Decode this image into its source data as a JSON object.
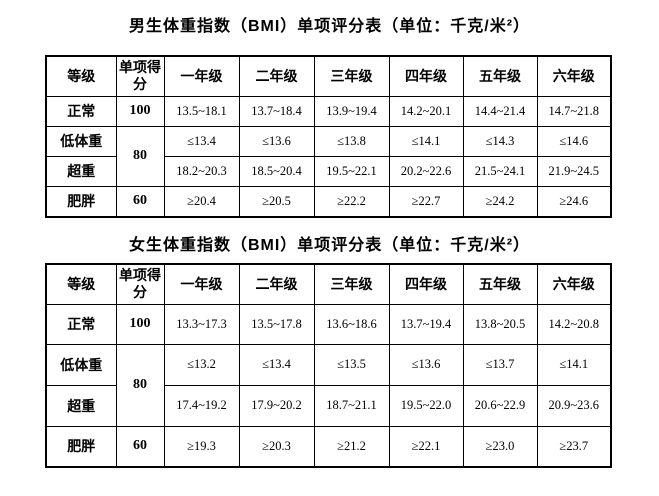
{
  "colors": {
    "background": "#ffffff",
    "border": "#000000",
    "text": "#000000"
  },
  "tables": [
    {
      "title": "男生体重指数（BMI）单项评分表（单位：千克/米²）",
      "headers": [
        "等级",
        "单项得分",
        "一年级",
        "二年级",
        "三年级",
        "四年级",
        "五年级",
        "六年级"
      ],
      "rows": [
        {
          "grade": "正常",
          "score": "100",
          "score_rowspan": 1,
          "values": [
            "13.5~18.1",
            "13.7~18.4",
            "13.9~19.4",
            "14.2~20.1",
            "14.4~21.4",
            "14.7~21.8"
          ]
        },
        {
          "grade": "低体重",
          "score": "80",
          "score_rowspan": 2,
          "values": [
            "≤13.4",
            "≤13.6",
            "≤13.8",
            "≤14.1",
            "≤14.3",
            "≤14.6"
          ]
        },
        {
          "grade": "超重",
          "score": null,
          "score_rowspan": 0,
          "values": [
            "18.2~20.3",
            "18.5~20.4",
            "19.5~22.1",
            "20.2~22.6",
            "21.5~24.1",
            "21.9~24.5"
          ]
        },
        {
          "grade": "肥胖",
          "score": "60",
          "score_rowspan": 1,
          "values": [
            "≥20.4",
            "≥20.5",
            "≥22.2",
            "≥22.7",
            "≥24.2",
            "≥24.6"
          ]
        }
      ]
    },
    {
      "title": "女生体重指数（BMI）单项评分表（单位：千克/米²）",
      "headers": [
        "等级",
        "单项得分",
        "一年级",
        "二年级",
        "三年级",
        "四年级",
        "五年级",
        "六年级"
      ],
      "rows": [
        {
          "grade": "正常",
          "score": "100",
          "score_rowspan": 1,
          "values": [
            "13.3~17.3",
            "13.5~17.8",
            "13.6~18.6",
            "13.7~19.4",
            "13.8~20.5",
            "14.2~20.8"
          ]
        },
        {
          "grade": "低体重",
          "score": "80",
          "score_rowspan": 2,
          "values": [
            "≤13.2",
            "≤13.4",
            "≤13.5",
            "≤13.6",
            "≤13.7",
            "≤14.1"
          ]
        },
        {
          "grade": "超重",
          "score": null,
          "score_rowspan": 0,
          "values": [
            "17.4~19.2",
            "17.9~20.2",
            "18.7~21.1",
            "19.5~22.0",
            "20.6~22.9",
            "20.9~23.6"
          ]
        },
        {
          "grade": "肥胖",
          "score": "60",
          "score_rowspan": 1,
          "values": [
            "≥19.3",
            "≥20.3",
            "≥21.2",
            "≥22.1",
            "≥23.0",
            "≥23.7"
          ]
        }
      ]
    }
  ]
}
